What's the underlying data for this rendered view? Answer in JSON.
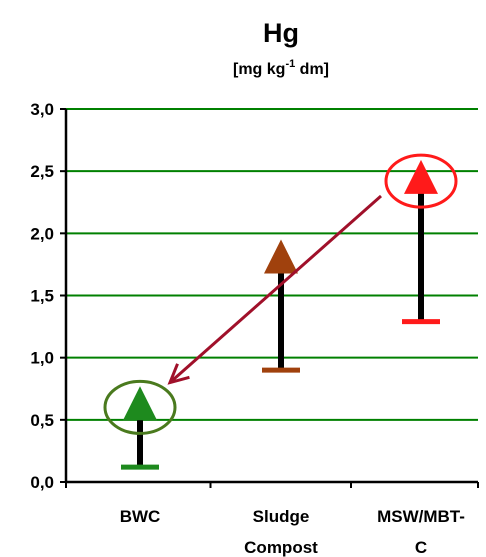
{
  "chart_data": {
    "type": "range-marker",
    "title": "Hg",
    "subtitle": {
      "prefix": "[mg kg",
      "superscript": "-1",
      "suffix": " dm]"
    },
    "ylim": [
      0,
      3.0
    ],
    "yticks": [
      "0,0",
      "0,5",
      "1,0",
      "1,5",
      "2,0",
      "2,5",
      "3,0"
    ],
    "ytick_values": [
      0,
      0.5,
      1.0,
      1.5,
      2.0,
      2.5,
      3.0
    ],
    "grid": true,
    "categories": [
      {
        "lines": [
          "BWC"
        ]
      },
      {
        "lines": [
          "Sludge",
          "Compost"
        ]
      },
      {
        "lines": [
          "MSW/MBT-",
          "C"
        ]
      }
    ],
    "series": [
      {
        "category": 0,
        "min": 0.12,
        "max": 0.62,
        "color": "#1e8a1e"
      },
      {
        "category": 1,
        "min": 0.9,
        "max": 1.8,
        "color": "#a0410d"
      },
      {
        "category": 2,
        "min": 1.29,
        "max": 2.44,
        "color": "#ff1a1a"
      }
    ],
    "annotations": {
      "highlight_circles": [
        {
          "category": 0,
          "value": 0.6,
          "color": "#4a7a1e"
        },
        {
          "category": 2,
          "value": 2.42,
          "color": "#ff1a1a"
        }
      ],
      "arrow": {
        "from": {
          "category": 2,
          "value": 2.3
        },
        "to": {
          "category": 0,
          "value": 0.8
        },
        "color": "#a0102a"
      }
    },
    "colors": {
      "grid": "#008000",
      "axis": "#000000",
      "whisker": "#000000"
    }
  }
}
